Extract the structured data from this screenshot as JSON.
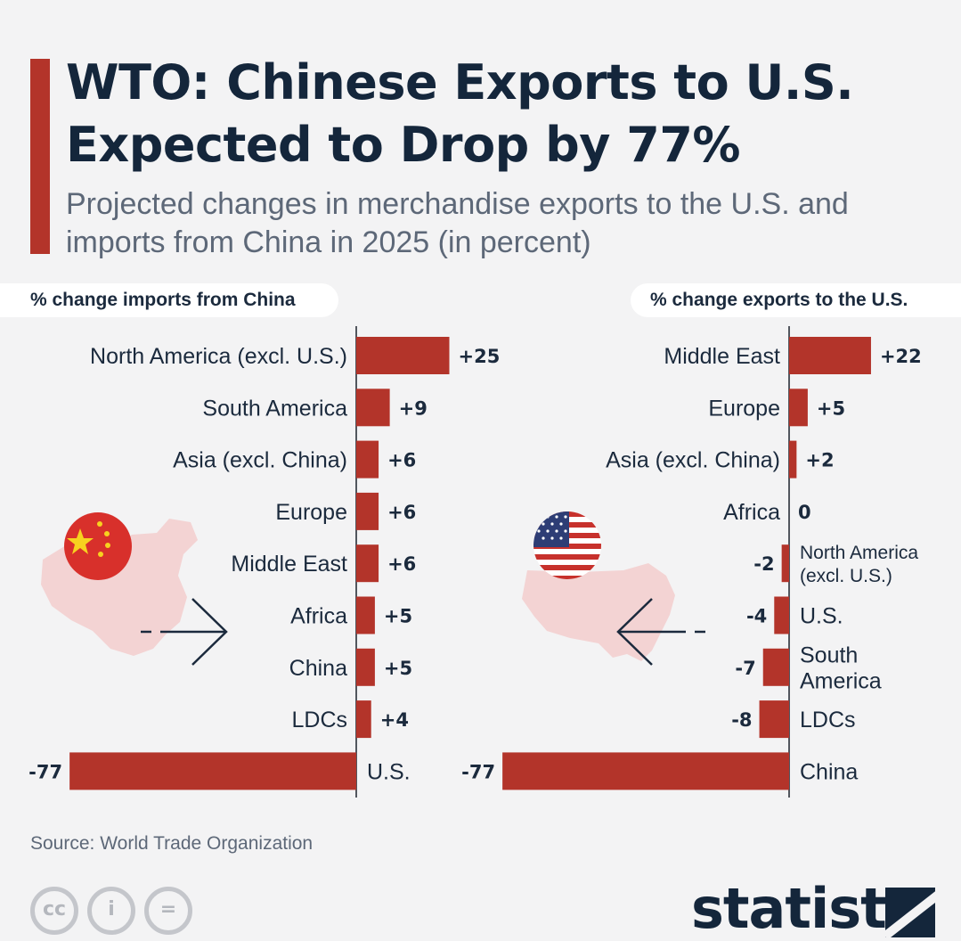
{
  "title": "WTO: Chinese Exports to U.S. Expected to Drop by 77%",
  "subtitle": "Projected changes in merchandise exports to the U.S. and imports from China in 2025 (in percent)",
  "source": "Source: World Trade Organization",
  "brand": "statista",
  "license_icons": [
    "cc",
    "i",
    "="
  ],
  "colors": {
    "bar": "#b3342a",
    "title": "#14263b",
    "subtitle": "#5d6878",
    "map": "#f3d3d3",
    "background": "#f3f3f4"
  },
  "chart_data": [
    {
      "type": "bar",
      "orientation": "horizontal",
      "title": "% change imports from China",
      "categories": [
        "North America (excl. U.S.)",
        "South America",
        "Asia (excl. China)",
        "Europe",
        "Middle East",
        "Africa",
        "China",
        "LDCs",
        "U.S."
      ],
      "values": [
        25,
        9,
        6,
        6,
        6,
        5,
        5,
        4,
        -77
      ],
      "value_labels": [
        "+25",
        "+9",
        "+6",
        "+6",
        "+6",
        "+5",
        "+5",
        "+4",
        "-77"
      ],
      "xlim": [
        -77,
        25
      ],
      "grid": false,
      "decoration": "china-map-with-flag-icon"
    },
    {
      "type": "bar",
      "orientation": "horizontal",
      "title": "% change exports to the U.S.",
      "categories": [
        "Middle East",
        "Europe",
        "Asia (excl. China)",
        "Africa",
        "North America (excl. U.S.)",
        "U.S.",
        "South America",
        "LDCs",
        "China"
      ],
      "values": [
        22,
        5,
        2,
        0,
        -2,
        -4,
        -7,
        -8,
        -77
      ],
      "value_labels": [
        "+22",
        "+5",
        "+2",
        "0",
        "-2",
        "-4",
        "-7",
        "-8",
        "-77"
      ],
      "xlim": [
        -77,
        22
      ],
      "grid": false,
      "decoration": "us-map-with-flag-icon"
    }
  ]
}
